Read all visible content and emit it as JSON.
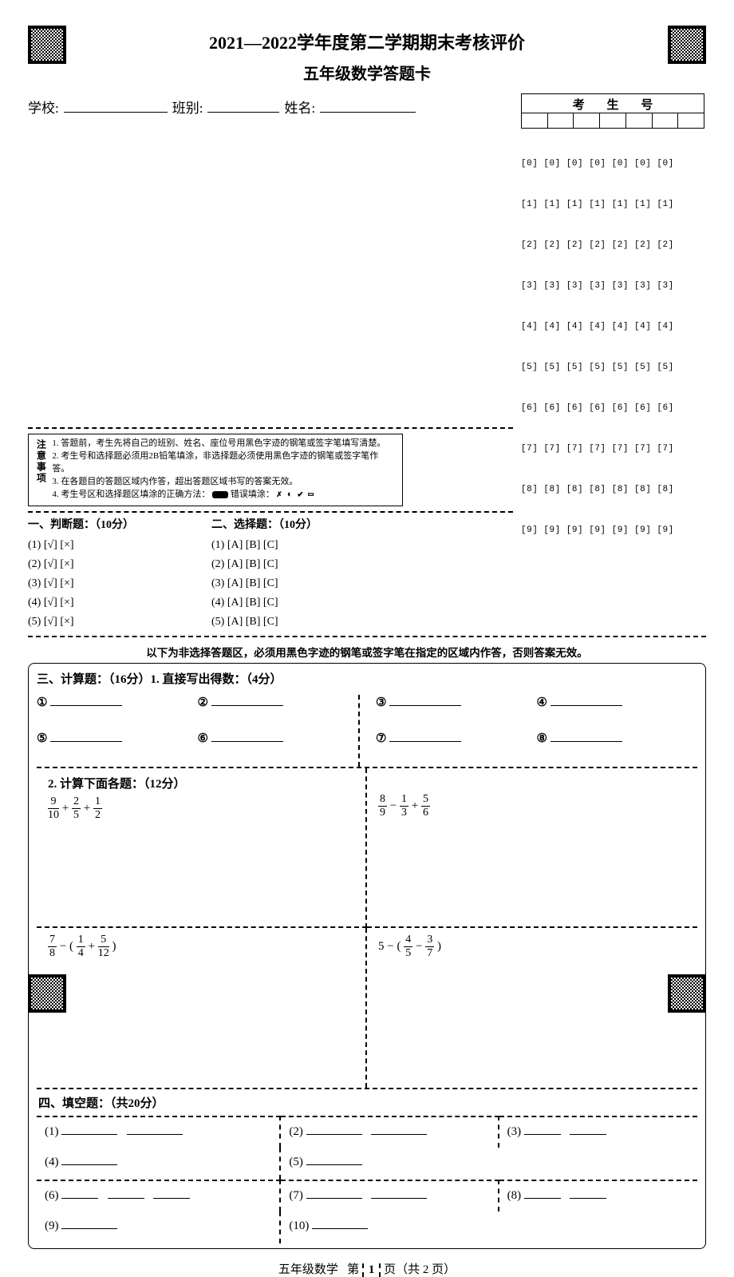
{
  "header": {
    "title1": "2021—2022学年度第二学期期末考核评价",
    "title2": "五年级数学答题卡",
    "school_label": "学校:",
    "class_label": "班别:",
    "name_label": "姓名:",
    "candidate_label": "考 生 号"
  },
  "bubbles": {
    "rows": [
      "[0] [0] [0] [0] [0] [0] [0]",
      "[1] [1] [1] [1] [1] [1] [1]",
      "[2] [2] [2] [2] [2] [2] [2]",
      "[3] [3] [3] [3] [3] [3] [3]",
      "[4] [4] [4] [4] [4] [4] [4]",
      "[5] [5] [5] [5] [5] [5] [5]",
      "[6] [6] [6] [6] [6] [6] [6]",
      "[7] [7] [7] [7] [7] [7] [7]",
      "[8] [8] [8] [8] [8] [8] [8]",
      "[9] [9] [9] [9] [9] [9] [9]"
    ]
  },
  "notice": {
    "label": "注意事项",
    "l1": "1. 答题前，考生先将自己的班别、姓名、座位号用黑色字迹的钢笔或签字笔填写清楚。",
    "l2": "2. 考生号和选择题必须用2B铅笔填涂，非选择题必须使用黑色字迹的钢笔或签字笔作答。",
    "l3": "3. 在各题目的答题区域内作答，超出答题区域书写的答案无效。",
    "l4a": "4. 考生号区和选择题区填涂的正确方法：",
    "l4b": "  错误填涂："
  },
  "sec1": {
    "head": "一、判断题：（10分）",
    "items": [
      "(1) [√] [×]",
      "(2) [√] [×]",
      "(3) [√] [×]",
      "(4) [√] [×]",
      "(5) [√] [×]"
    ]
  },
  "sec2": {
    "head": "二、选择题：（10分）",
    "items": [
      "(1) [A] [B] [C]",
      "(2) [A] [B] [C]",
      "(3) [A] [B] [C]",
      "(4) [A] [B] [C]",
      "(5) [A] [B] [C]"
    ]
  },
  "warn": "以下为非选择答题区，必须用黑色字迹的钢笔或签字笔在指定的区域内作答，否则答案无效。",
  "q3": {
    "head": "三、计算题：（16分）1. 直接写出得数：（4分）",
    "circles": [
      "①",
      "②",
      "③",
      "④",
      "⑤",
      "⑥",
      "⑦",
      "⑧"
    ],
    "head2": "2. 计算下面各题：（12分）",
    "calc": [
      {
        "terms": [
          [
            "9",
            "10"
          ],
          "+",
          [
            "2",
            "5"
          ],
          "+",
          [
            "1",
            "2"
          ]
        ]
      },
      {
        "terms": [
          [
            "8",
            "9"
          ],
          "−",
          [
            "1",
            "3"
          ],
          "+",
          [
            "5",
            "6"
          ]
        ]
      },
      {
        "terms": [
          [
            "7",
            "8"
          ],
          "− (",
          [
            "1",
            "4"
          ],
          "+",
          [
            "5",
            "12"
          ],
          ")"
        ]
      },
      {
        "terms": [
          "5 − (",
          [
            "4",
            "5"
          ],
          "−",
          [
            "3",
            "7"
          ],
          ")"
        ]
      }
    ]
  },
  "q4": {
    "head": "四、填空题：（共20分）",
    "items": [
      "(1)",
      "(2)",
      "(3)",
      "(4)",
      "(5)",
      "(6)",
      "(7)",
      "(8)",
      "(9)",
      "(10)"
    ]
  },
  "footer": {
    "subject": "五年级数学",
    "page_label_a": "第",
    "page_no": "1",
    "page_label_b": "页（共 2 页）"
  }
}
